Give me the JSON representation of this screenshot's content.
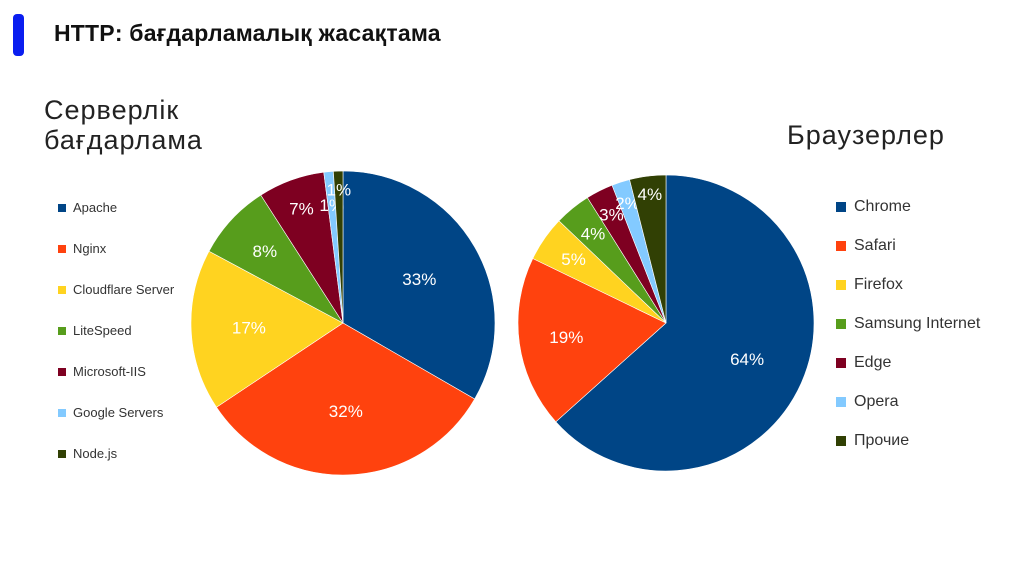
{
  "header": {
    "title": "HTTP: бағдарламалық жасақтама"
  },
  "chart_data": [
    {
      "type": "pie",
      "title": "Серверлік бағдарлама",
      "legend_position": "left",
      "categories": [
        "Apache",
        "Nginx",
        "Cloudflare Server",
        "LiteSpeed",
        "Microsoft-IIS",
        "Google Servers",
        "Node.js"
      ],
      "values": [
        33,
        32,
        17,
        8,
        7,
        1,
        1
      ],
      "labels": [
        "33%",
        "32%",
        "17%",
        "8%",
        "7%",
        "1%",
        "1%"
      ],
      "colors": [
        "#004586",
        "#ff420e",
        "#ffd320",
        "#579d1c",
        "#7e0021",
        "#83caff",
        "#314004"
      ]
    },
    {
      "type": "pie",
      "title": "Браузерлер",
      "legend_position": "right",
      "categories": [
        "Chrome",
        "Safari",
        "Firefox",
        "Samsung Internet",
        "Edge",
        "Opera",
        "Прочие"
      ],
      "values": [
        64,
        19,
        5,
        4,
        3,
        2,
        4
      ],
      "labels": [
        "64%",
        "19%",
        "5%",
        "4%",
        "3%",
        "2%",
        "4%"
      ],
      "colors": [
        "#004586",
        "#ff420e",
        "#ffd320",
        "#579d1c",
        "#7e0021",
        "#83caff",
        "#314004"
      ]
    }
  ]
}
